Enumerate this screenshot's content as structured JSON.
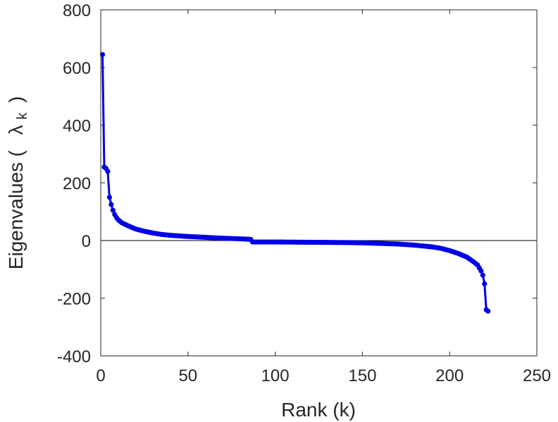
{
  "chart_data": {
    "type": "line",
    "title": "",
    "xlabel": "Rank (k)",
    "ylabel": "Eigenvalues (",
    "ylabel_symbol": "λ",
    "ylabel_subscript": "k",
    "ylabel_close": ")",
    "xlim": [
      0,
      250
    ],
    "ylim": [
      -400,
      800
    ],
    "xticks": [
      0,
      50,
      100,
      150,
      200,
      250
    ],
    "yticks": [
      -400,
      -200,
      0,
      200,
      400,
      600,
      800
    ],
    "grid": false,
    "zero_line": true,
    "series_color": "#0000e6",
    "anchors": [
      [
        1,
        645
      ],
      [
        2,
        255
      ],
      [
        3,
        250
      ],
      [
        4,
        240
      ],
      [
        5,
        150
      ],
      [
        6,
        125
      ],
      [
        7,
        105
      ],
      [
        8,
        90
      ],
      [
        9,
        80
      ],
      [
        10,
        72
      ],
      [
        12,
        62
      ],
      [
        15,
        53
      ],
      [
        18,
        45
      ],
      [
        20,
        40
      ],
      [
        25,
        32
      ],
      [
        30,
        26
      ],
      [
        35,
        21
      ],
      [
        40,
        18
      ],
      [
        50,
        14
      ],
      [
        60,
        11
      ],
      [
        70,
        8
      ],
      [
        80,
        6
      ],
      [
        86,
        4
      ],
      [
        87,
        -5
      ],
      [
        90,
        -5
      ],
      [
        100,
        -5
      ],
      [
        120,
        -6
      ],
      [
        140,
        -7
      ],
      [
        150,
        -8
      ],
      [
        160,
        -10
      ],
      [
        170,
        -12
      ],
      [
        180,
        -16
      ],
      [
        190,
        -22
      ],
      [
        195,
        -27
      ],
      [
        200,
        -35
      ],
      [
        205,
        -45
      ],
      [
        210,
        -58
      ],
      [
        214,
        -75
      ],
      [
        216,
        -85
      ],
      [
        218,
        -105
      ],
      [
        219,
        -120
      ],
      [
        220,
        -150
      ],
      [
        221,
        -240
      ],
      [
        222,
        -245
      ]
    ]
  }
}
